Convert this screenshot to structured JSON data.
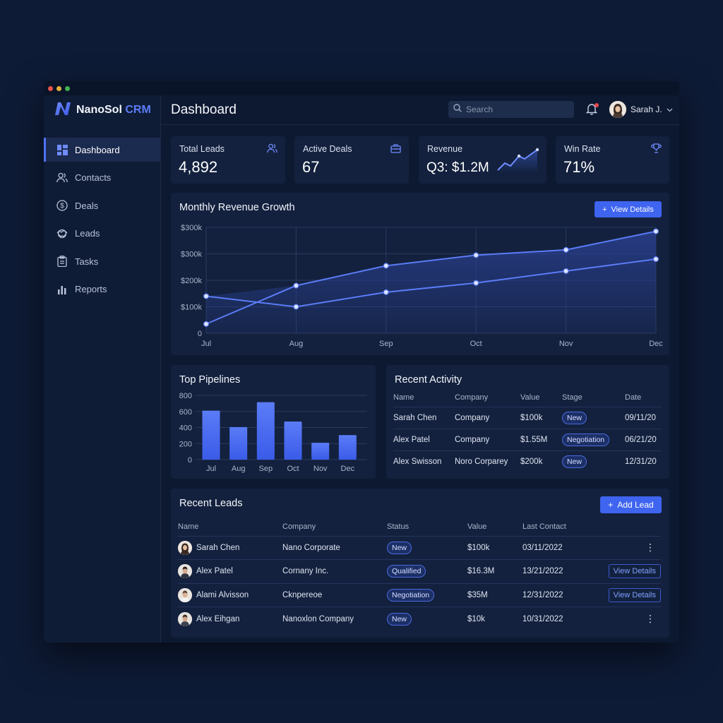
{
  "app": {
    "brand_main": "NanoSol",
    "brand_accent": "CRM"
  },
  "sidebar": {
    "items": [
      {
        "label": "Dashboard",
        "icon": "grid-icon",
        "active": true
      },
      {
        "label": "Contacts",
        "icon": "users-icon",
        "active": false
      },
      {
        "label": "Deals",
        "icon": "dollar-icon",
        "active": false
      },
      {
        "label": "Leads",
        "icon": "handshake-icon",
        "active": false
      },
      {
        "label": "Tasks",
        "icon": "clipboard-icon",
        "active": false
      },
      {
        "label": "Reports",
        "icon": "bar-chart-icon",
        "active": false
      }
    ]
  },
  "header": {
    "title": "Dashboard",
    "search_placeholder": "Search",
    "user_name": "Sarah J."
  },
  "stats": [
    {
      "label": "Total Leads",
      "value": "4,892",
      "icon": "users-icon"
    },
    {
      "label": "Active Deals",
      "value": "67",
      "icon": "briefcase-icon"
    },
    {
      "label": "Revenue",
      "value": "Q3: $1.2M",
      "icon": "sparkline-icon"
    },
    {
      "label": "Win Rate",
      "value": "71%",
      "icon": "trophy-icon"
    }
  ],
  "revenue_card": {
    "title": "Monthly Revenue Growth",
    "button": "View Details"
  },
  "pipelines_card": {
    "title": "Top Pipelines"
  },
  "activity": {
    "title": "Recent Activity",
    "columns": [
      "Name",
      "Company",
      "Value",
      "Stage",
      "Date"
    ],
    "rows": [
      {
        "name": "Sarah Chen",
        "company": "Company",
        "value": "$100k",
        "stage": "New",
        "date": "09/11/20"
      },
      {
        "name": "Alex Patel",
        "company": "Company",
        "value": "$1.55M",
        "stage": "Negotiation",
        "date": "06/21/20"
      },
      {
        "name": "Alex Swisson",
        "company": "Noro Corparey",
        "value": "$200k",
        "stage": "New",
        "date": "12/31/20"
      }
    ]
  },
  "leads": {
    "title": "Recent Leads",
    "add_button": "Add Lead",
    "columns": [
      "Name",
      "Company",
      "Status",
      "Value",
      "Last Contact"
    ],
    "rows": [
      {
        "name": "Sarah Chen",
        "company": "Nano Corporate",
        "status": "New",
        "value": "$100k",
        "last_contact": "03/11/2022",
        "action": "menu"
      },
      {
        "name": "Alex Patel",
        "company": "Cornany Inc.",
        "status": "Qualified",
        "value": "$16.3M",
        "last_contact": "13/21/2022",
        "action": "View Details"
      },
      {
        "name": "Alami Alvisson",
        "company": "Cknpereoe",
        "status": "Negotiation",
        "value": "$35M",
        "last_contact": "12/31/2022",
        "action": "View Details"
      },
      {
        "name": "Alex Eihgan",
        "company": "Nanoxlon Company",
        "status": "New",
        "value": "$10k",
        "last_contact": "10/31/2022",
        "action": "menu"
      }
    ]
  },
  "chart_data": [
    {
      "type": "line",
      "title": "Monthly Revenue Growth",
      "categories": [
        "Jul",
        "Aug",
        "Sep",
        "Oct",
        "Nov",
        "Dec"
      ],
      "y_tick_labels": [
        "0",
        "$100k",
        "$200k",
        "$300k",
        "$300k"
      ],
      "ylim": [
        0,
        400
      ],
      "grid": true,
      "series": [
        {
          "values": [
            35,
            180,
            255,
            295,
            315,
            385
          ]
        },
        {
          "values": [
            140,
            100,
            155,
            190,
            235,
            280
          ]
        }
      ],
      "colors": {
        "line": "#5b7cf7",
        "fill": "#2a3f8f"
      }
    },
    {
      "type": "bar",
      "title": "Top Pipelines",
      "categories": [
        "Jul",
        "Aug",
        "Sep",
        "Oct",
        "Nov",
        "Dec"
      ],
      "values": [
        610,
        405,
        715,
        475,
        210,
        305
      ],
      "y_ticks": [
        0,
        200,
        400,
        600,
        800
      ],
      "ylim": [
        0,
        800
      ],
      "colors": {
        "bar": "#4b6df0"
      }
    }
  ]
}
